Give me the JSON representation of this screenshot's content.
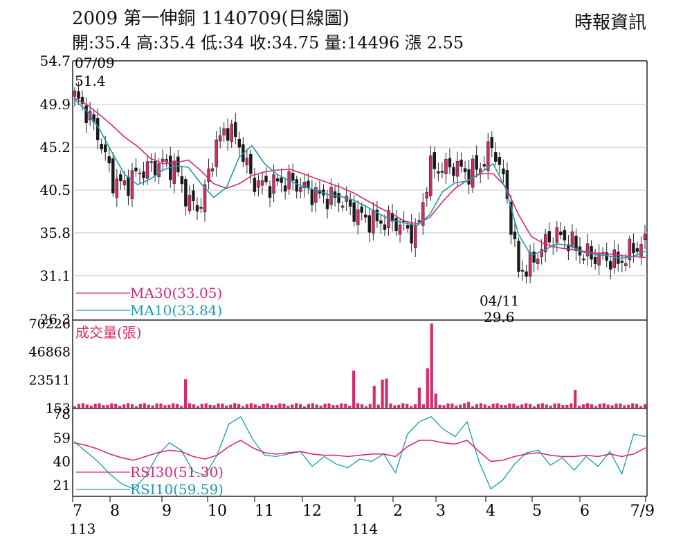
{
  "header": {
    "title": "2009  第一伸銅 1140709(日線圖)",
    "ohlc": "開:35.4 高:35.4 低:34 收:34.75 量:14496 漲 2.55",
    "source": "時報資訊"
  },
  "chart_data": {
    "type": "candlestick",
    "price_panel": {
      "y_ticks": [
        "54.7",
        "49.9",
        "45.2",
        "40.5",
        "35.8",
        "31.1",
        "26.3"
      ],
      "ylim": [
        26.3,
        54.7
      ],
      "high_annotation": {
        "date": "07/09",
        "value": "51.4"
      },
      "low_annotation": {
        "date": "04/11",
        "value": "29.6"
      },
      "legend": [
        {
          "label": "MA30(33.05)",
          "color": "#d6287a"
        },
        {
          "label": "MA10(33.84)",
          "color": "#1a9aae"
        }
      ],
      "ma30": [
        50.6,
        49.9,
        48.8,
        47.6,
        46.3,
        45.3,
        44.0,
        43.4,
        43.5,
        43.8,
        42.6,
        41.2,
        40.7,
        41.2,
        42.1,
        42.5,
        42.7,
        42.8,
        42.3,
        41.8,
        41.3,
        40.8,
        40.2,
        39.4,
        38.6,
        37.9,
        37.1,
        36.8,
        37.5,
        39.2,
        40.7,
        41.6,
        42.3,
        42.3,
        40.8,
        37.8,
        35.4,
        34.6,
        34.2,
        34.0,
        33.8,
        33.6,
        33.5,
        33.3,
        33.2,
        33.1
      ],
      "ma10": [
        50.5,
        49.2,
        47.2,
        44.6,
        42.2,
        41.1,
        41.7,
        42.7,
        43.2,
        43.0,
        41.2,
        39.7,
        40.8,
        44.1,
        45.4,
        43.4,
        42.2,
        41.5,
        40.9,
        40.5,
        40.0,
        39.8,
        39.4,
        38.7,
        37.9,
        37.2,
        36.9,
        36.6,
        37.8,
        40.3,
        41.3,
        41.5,
        42.4,
        43.4,
        40.6,
        35.6,
        33.3,
        33.9,
        34.6,
        34.4,
        33.7,
        33.4,
        33.3,
        33.0,
        33.2,
        33.8
      ],
      "closes": [
        50.8,
        49.0,
        46.0,
        41.5,
        41.0,
        42.5,
        43.0,
        43.5,
        42.8,
        39.0,
        38.8,
        45.0,
        47.5,
        45.5,
        41.5,
        41.0,
        41.3,
        41.5,
        40.8,
        40.0,
        39.7,
        39.5,
        38.2,
        37.3,
        37.0,
        37.1,
        36.4,
        35.6,
        43.0,
        42.8,
        43.2,
        42.3,
        43.1,
        45.5,
        40.8,
        31.5,
        32.3,
        34.5,
        35.6,
        34.9,
        33.5,
        33.2,
        33.0,
        32.5,
        34.0,
        34.75
      ]
    },
    "volume_panel": {
      "label": "成交量(張)",
      "y_ticks": [
        "70226",
        "46868",
        "23511",
        "153"
      ],
      "ylim": [
        153,
        70226
      ],
      "spikes": [
        {
          "i": 27,
          "v": 24000
        },
        {
          "i": 68,
          "v": 31000
        },
        {
          "i": 73,
          "v": 18500
        },
        {
          "i": 75,
          "v": 23500
        },
        {
          "i": 76,
          "v": 24500
        },
        {
          "i": 84,
          "v": 17000
        },
        {
          "i": 86,
          "v": 33000
        },
        {
          "i": 87,
          "v": 70226
        },
        {
          "i": 88,
          "v": 12000
        },
        {
          "i": 96,
          "v": 5000
        },
        {
          "i": 117,
          "v": 3800
        },
        {
          "i": 122,
          "v": 15000
        }
      ]
    },
    "rsi_panel": {
      "y_ticks": [
        "78",
        "59",
        "40",
        "21"
      ],
      "ylim": [
        12,
        82
      ],
      "legend": [
        {
          "label": "RSI30(51.30)",
          "color": "#d6287a"
        },
        {
          "label": "RSI10(59.59)",
          "color": "#1a9aae"
        }
      ],
      "rsi30": [
        55,
        53,
        50,
        46,
        43,
        41,
        44,
        47,
        49,
        48,
        44,
        42,
        45,
        52,
        57,
        51,
        47,
        46,
        47,
        48,
        46,
        45,
        45,
        44,
        45,
        46,
        46,
        44,
        52,
        57,
        57,
        55,
        54,
        57,
        48,
        40,
        41,
        44,
        46,
        47,
        45,
        44,
        44,
        45,
        44,
        46,
        44,
        46,
        51
      ],
      "rsi10": [
        56,
        48,
        40,
        30,
        22,
        18,
        28,
        45,
        55,
        49,
        32,
        29,
        45,
        70,
        76,
        58,
        45,
        44,
        46,
        48,
        36,
        44,
        38,
        35,
        42,
        40,
        46,
        31,
        62,
        72,
        76,
        66,
        60,
        72,
        40,
        18,
        25,
        38,
        47,
        49,
        37,
        43,
        33,
        44,
        36,
        48,
        30,
        62,
        60
      ]
    },
    "x_axis": {
      "months": [
        "7",
        "8",
        "9",
        "10",
        "11",
        "12",
        "1",
        "2",
        "3",
        "4",
        "5",
        "6",
        "7/9"
      ],
      "years": [
        "113",
        "114"
      ]
    },
    "colors": {
      "up": "#d9286b",
      "down": "#1a1a1a",
      "volume": "#d9286b",
      "ma30": "#d6287a",
      "ma10": "#1a9aae",
      "grid": "#c8c8c8"
    }
  }
}
